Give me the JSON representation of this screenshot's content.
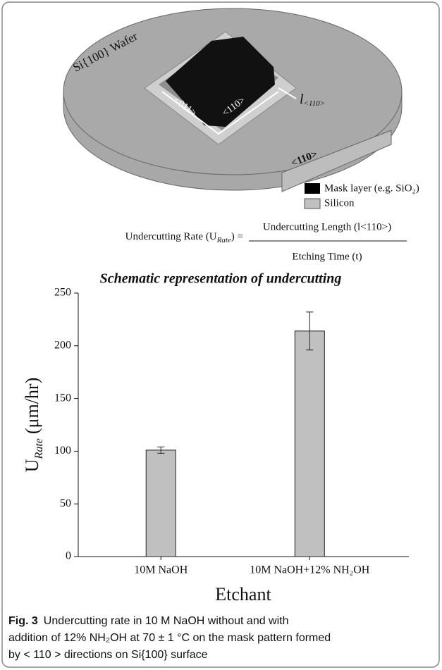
{
  "schematic": {
    "wafer_label": "Si{100} Wafer",
    "dir_011": "<011>",
    "dir_110_a": "<110>",
    "length_label": {
      "main": "l",
      "sub": "<110>"
    },
    "dir_110_b": "<110>",
    "legend": [
      "Mask layer (e.g. SiO₂)",
      "Silicon"
    ],
    "equation": {
      "lhs": "Undercutting Rate (U",
      "lhs_sub": "Rate",
      "lhs_end": ") =",
      "numerator": "Undercutting Length (l<110>)",
      "denominator": "Etching Time (t)"
    },
    "heading": "Schematic representation of undercutting"
  },
  "chart_data": {
    "type": "bar",
    "categories": [
      "10M NaOH",
      "10M NaOH+12% NH₂OH"
    ],
    "values": [
      101,
      214
    ],
    "errors": [
      3,
      18
    ],
    "color": "#c0c0c0",
    "ylabel": {
      "main": "U",
      "sub": "Rate",
      "unit": "(μm/hr)"
    },
    "xlabel": "Etchant",
    "ylim": [
      0,
      250
    ],
    "yticks": [
      0,
      50,
      100,
      150,
      200,
      250
    ]
  },
  "caption": {
    "label": "Fig. 3",
    "lines": [
      "Undercutting rate in 10 M NaOH without and with",
      "addition of 12% NH₂OH at 70 ± 1 °C on the mask pattern formed",
      "by < 110 > directions on Si{100} surface"
    ]
  }
}
